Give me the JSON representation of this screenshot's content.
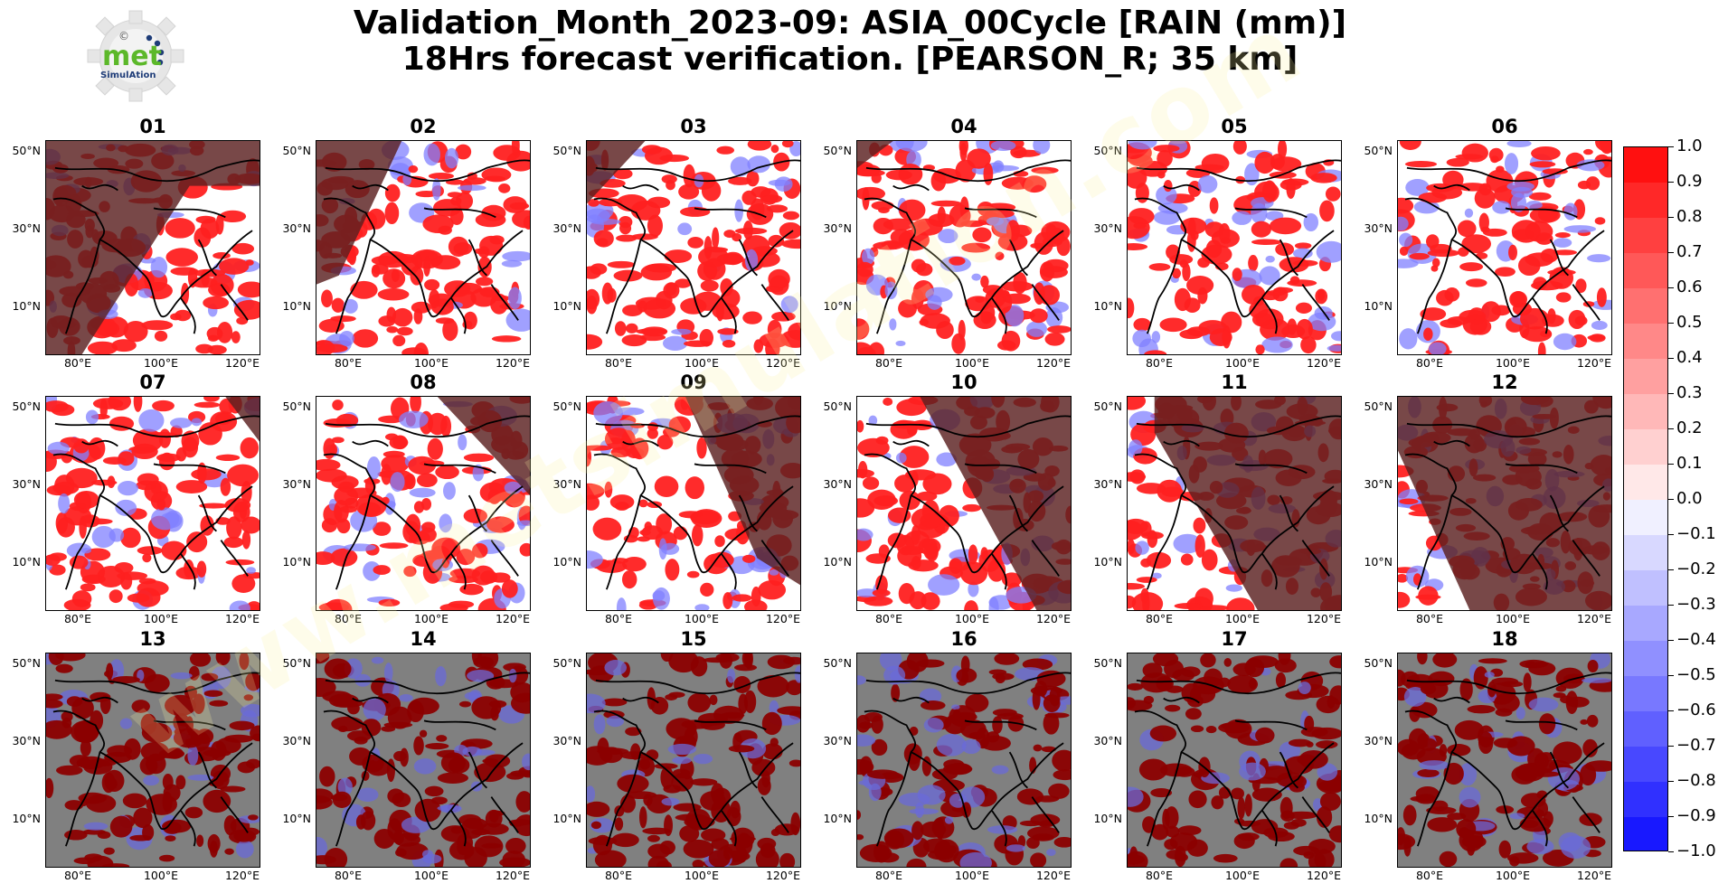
{
  "title_line1": "Validation_Month_2023-09: ASIA_00Cycle [RAIN (mm)]",
  "title_line2": "18Hrs forecast verification.  [PEARSON_R; 35 km]",
  "logo": {
    "text_main": "met",
    "text_sub": "SimulAtion",
    "symbol": "©"
  },
  "watermark": "www.metsimulation.com",
  "panels": [
    {
      "label": "01",
      "night": "bottom-left"
    },
    {
      "label": "02",
      "night": "top-left"
    },
    {
      "label": "03",
      "night": "top-left-corner"
    },
    {
      "label": "04",
      "night": "top-left-small"
    },
    {
      "label": "05",
      "night": "none"
    },
    {
      "label": "06",
      "night": "none"
    },
    {
      "label": "07",
      "night": "top-right-small"
    },
    {
      "label": "08",
      "night": "top-right"
    },
    {
      "label": "09",
      "night": "right"
    },
    {
      "label": "10",
      "night": "right-half"
    },
    {
      "label": "11",
      "night": "most"
    },
    {
      "label": "12",
      "night": "almost-all"
    },
    {
      "label": "13",
      "night": "all"
    },
    {
      "label": "14",
      "night": "all"
    },
    {
      "label": "15",
      "night": "all"
    },
    {
      "label": "16",
      "night": "all"
    },
    {
      "label": "17",
      "night": "all"
    },
    {
      "label": "18",
      "night": "all"
    }
  ],
  "axes": {
    "y_ticks": [
      "50°N",
      "30°N",
      "10°N"
    ],
    "x_ticks": [
      "80°E",
      "100°E",
      "120°E"
    ]
  },
  "colorbar": {
    "labels": [
      "1.0",
      "0.9",
      "0.8",
      "0.7",
      "0.6",
      "0.5",
      "0.4",
      "0.3",
      "0.2",
      "0.1",
      "0.0",
      "−0.1",
      "−0.2",
      "−0.3",
      "−0.4",
      "−0.5",
      "−0.6",
      "−0.7",
      "−0.8",
      "−0.9",
      "−1.0"
    ],
    "colors": [
      "#ff1010",
      "#ff2828",
      "#ff4040",
      "#ff5858",
      "#ff7070",
      "#ff8888",
      "#ffa0a0",
      "#ffb8b8",
      "#ffd0d0",
      "#ffe8e8",
      "#f0f0ff",
      "#d8d8ff",
      "#c0c0ff",
      "#a8a8ff",
      "#9090ff",
      "#7878ff",
      "#6060ff",
      "#4848ff",
      "#3030ff",
      "#1818ff"
    ]
  },
  "colors": {
    "night": "#808080",
    "land_outline": "#000000",
    "positive": "#ff2020",
    "dark_positive": "#8b0000",
    "negative": "#8080ff"
  }
}
